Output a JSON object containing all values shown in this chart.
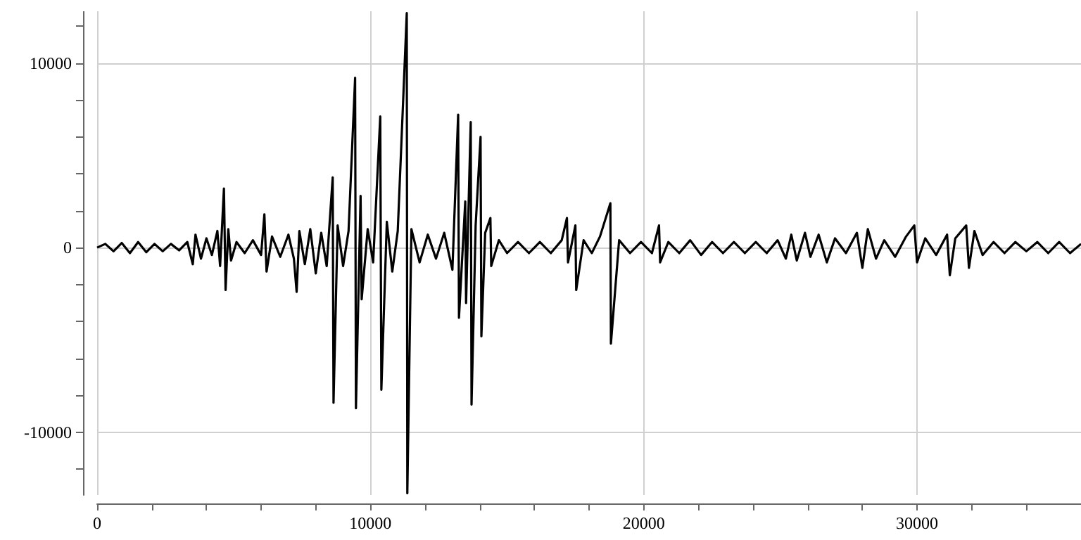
{
  "chart_data": {
    "type": "line",
    "x": [
      0,
      300,
      600,
      900,
      1200,
      1500,
      1800,
      2100,
      2400,
      2700,
      3000,
      3300,
      3500,
      3600,
      3800,
      4000,
      4200,
      4400,
      4500,
      4640,
      4700,
      4800,
      4900,
      5100,
      5400,
      5700,
      6000,
      6120,
      6200,
      6400,
      6700,
      7000,
      7200,
      7300,
      7400,
      7600,
      7800,
      8000,
      8200,
      8400,
      8620,
      8650,
      8800,
      9000,
      9200,
      9440,
      9470,
      9640,
      9680,
      9900,
      10100,
      10360,
      10400,
      10600,
      10800,
      11000,
      11330,
      11350,
      11500,
      11800,
      12100,
      12400,
      12700,
      13000,
      13210,
      13240,
      13470,
      13500,
      13670,
      13700,
      13850,
      14030,
      14060,
      14200,
      14390,
      14420,
      14700,
      15000,
      15400,
      15800,
      16200,
      16600,
      17000,
      17190,
      17230,
      17500,
      17530,
      17800,
      18100,
      18400,
      18780,
      18800,
      19100,
      19500,
      19900,
      20300,
      20560,
      20600,
      20900,
      21300,
      21700,
      22100,
      22500,
      22900,
      23300,
      23700,
      24100,
      24500,
      24900,
      25200,
      25400,
      25600,
      25900,
      26100,
      26400,
      26700,
      27000,
      27400,
      27800,
      28000,
      28200,
      28500,
      28800,
      29200,
      29600,
      29900,
      30000,
      30300,
      30700,
      31100,
      31200,
      31400,
      31800,
      31900,
      32100,
      32400,
      32800,
      33200,
      33600,
      34000,
      34400,
      34800,
      35200,
      35600,
      36000
    ],
    "series": [
      {
        "color": "#000000",
        "values": [
          0,
          200,
          -200,
          250,
          -300,
          300,
          -250,
          200,
          -200,
          200,
          -150,
          300,
          -900,
          700,
          -600,
          500,
          -400,
          900,
          -1000,
          3200,
          -2300,
          1000,
          -700,
          300,
          -300,
          400,
          -400,
          1800,
          -1300,
          600,
          -500,
          700,
          -600,
          -2400,
          900,
          -900,
          1000,
          -1400,
          800,
          -1000,
          3800,
          -8400,
          1200,
          -1000,
          900,
          9200,
          -8700,
          2800,
          -2800,
          1000,
          -800,
          7100,
          -7700,
          1400,
          -1300,
          900,
          12700,
          -13300,
          1000,
          -800,
          700,
          -600,
          800,
          -1200,
          7200,
          -3800,
          2500,
          -3000,
          6800,
          -8500,
          1200,
          6000,
          -4800,
          800,
          1600,
          -1000,
          400,
          -300,
          300,
          -300,
          300,
          -300,
          400,
          1600,
          -800,
          1200,
          -2300,
          400,
          -300,
          600,
          2400,
          -5200,
          400,
          -300,
          300,
          -300,
          1200,
          -800,
          300,
          -300,
          400,
          -400,
          300,
          -300,
          300,
          -300,
          300,
          -300,
          400,
          -600,
          700,
          -700,
          800,
          -500,
          700,
          -800,
          500,
          -300,
          800,
          -1100,
          1000,
          -600,
          400,
          -500,
          600,
          1200,
          -800,
          500,
          -400,
          700,
          -1500,
          500,
          1200,
          -1100,
          900,
          -400,
          300,
          -300,
          300,
          -200,
          300,
          -300,
          300,
          -300,
          200
        ]
      }
    ],
    "xlim": [
      0,
      36000
    ],
    "ylim": [
      -13400,
      12800
    ],
    "xticks": [
      0,
      {
        "value": 2000,
        "label": null
      },
      {
        "value": 4000,
        "label": null
      },
      {
        "value": 6000,
        "label": null
      },
      {
        "value": 8000,
        "label": null
      },
      10000,
      {
        "value": 12000,
        "label": null
      },
      {
        "value": 14000,
        "label": null
      },
      {
        "value": 16000,
        "label": null
      },
      {
        "value": 18000,
        "label": null
      },
      20000,
      {
        "value": 22000,
        "label": null
      },
      {
        "value": 24000,
        "label": null
      },
      {
        "value": 26000,
        "label": null
      },
      {
        "value": 28000,
        "label": null
      },
      30000,
      {
        "value": 32000,
        "label": null
      },
      {
        "value": 34000,
        "label": null
      }
    ],
    "yticks": [
      {
        "value": -12000,
        "label": null
      },
      -10000,
      {
        "value": -8000,
        "label": null
      },
      {
        "value": -6000,
        "label": null
      },
      {
        "value": -4000,
        "label": null
      },
      {
        "value": -2000,
        "label": null
      },
      0,
      {
        "value": 2000,
        "label": null
      },
      {
        "value": 4000,
        "label": null
      },
      {
        "value": 6000,
        "label": null
      },
      {
        "value": 8000,
        "label": null
      },
      10000,
      {
        "value": 12000,
        "label": null
      }
    ],
    "grid": true,
    "marker": "none",
    "line_style": "solid"
  }
}
